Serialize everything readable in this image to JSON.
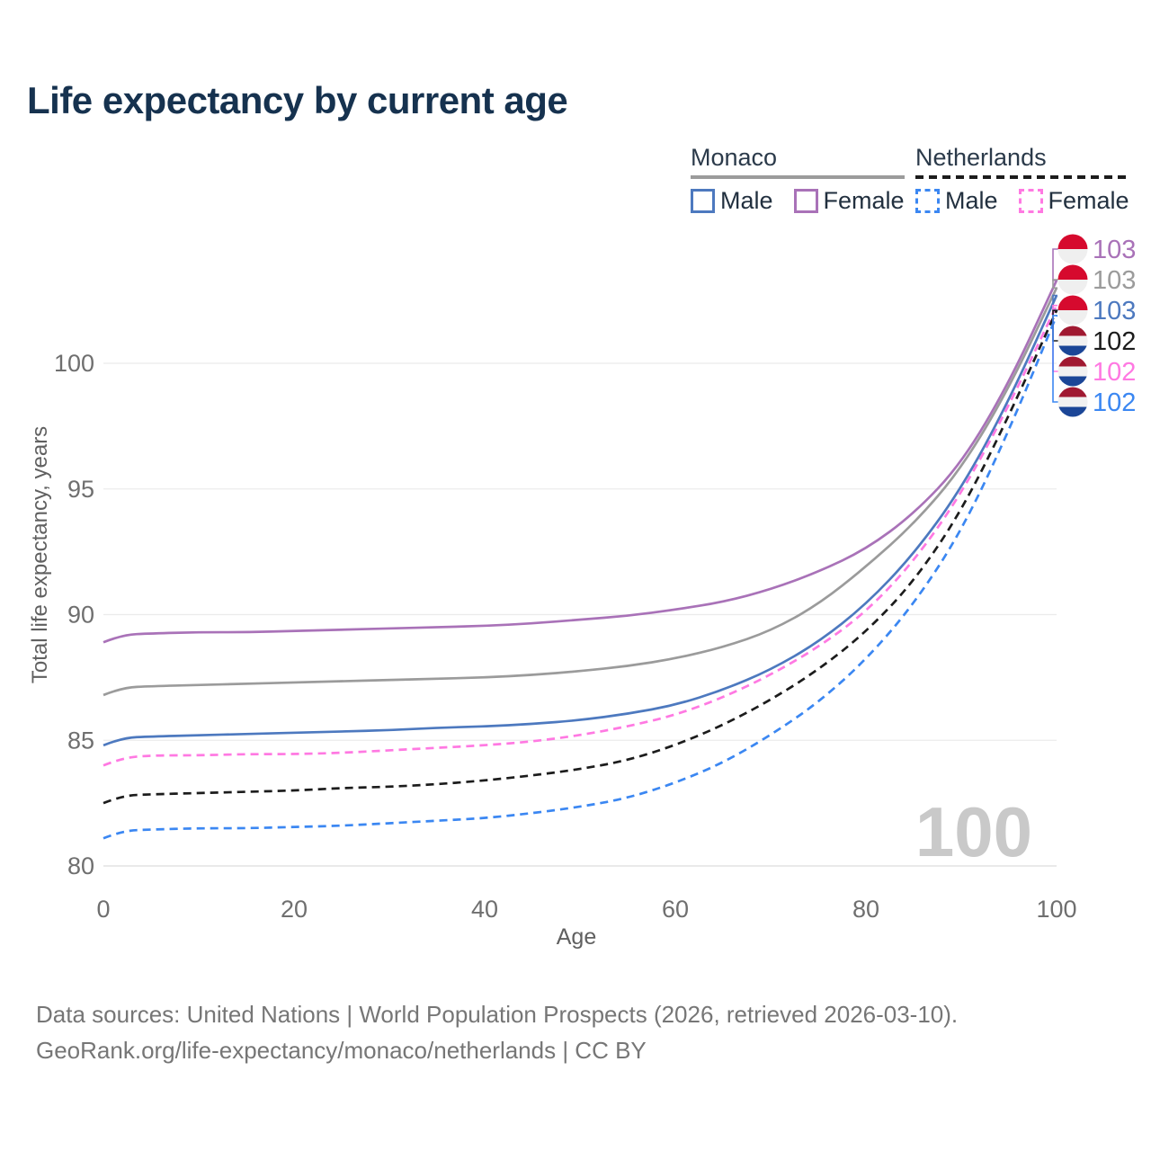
{
  "title": "Life expectancy by current age",
  "legend": {
    "groups": [
      {
        "name": "Monaco",
        "line_style": "solid",
        "underline_color": "#9b9b9b",
        "items": [
          {
            "label": "Male",
            "color": "#4d79bf"
          },
          {
            "label": "Female",
            "color": "#a972b8"
          }
        ]
      },
      {
        "name": "Netherlands",
        "line_style": "dashed",
        "underline_color": "#1c1c1c",
        "items": [
          {
            "label": "Male",
            "color": "#3b87f2"
          },
          {
            "label": "Female",
            "color": "#ff79e2"
          }
        ]
      }
    ]
  },
  "chart_data": {
    "type": "line",
    "xlabel": "Age",
    "ylabel": "Total life expectancy, years",
    "xlim": [
      0,
      100
    ],
    "ylim": [
      79.5,
      103.5
    ],
    "xticks": [
      0,
      20,
      40,
      60,
      80,
      100
    ],
    "yticks": [
      80,
      85,
      90,
      95,
      100
    ],
    "grid": "horizontal",
    "legend_position": "top-right",
    "annotation": "100",
    "x": [
      0,
      2,
      5,
      10,
      15,
      20,
      25,
      30,
      35,
      40,
      45,
      50,
      55,
      60,
      65,
      70,
      75,
      80,
      85,
      90,
      95,
      100
    ],
    "series": [
      {
        "name": "Monaco Female",
        "country": "Monaco",
        "sex": "Female",
        "color": "#a972b8",
        "dashed": false,
        "flag": "monaco",
        "end_label": "103",
        "label_slot": 0,
        "values": [
          88.9,
          89.2,
          89.25,
          89.3,
          89.3,
          89.35,
          89.4,
          89.45,
          89.5,
          89.55,
          89.65,
          89.8,
          89.95,
          90.2,
          90.5,
          91.0,
          91.7,
          92.6,
          94.0,
          96.0,
          99.2,
          103.3
        ]
      },
      {
        "name": "Monaco Total",
        "country": "Monaco",
        "sex": "Total",
        "color": "#9b9b9b",
        "dashed": false,
        "flag": "monaco",
        "end_label": "103",
        "label_slot": 1,
        "values": [
          86.8,
          87.1,
          87.15,
          87.2,
          87.25,
          87.3,
          87.35,
          87.4,
          87.45,
          87.5,
          87.6,
          87.75,
          87.95,
          88.25,
          88.7,
          89.35,
          90.4,
          91.9,
          93.6,
          95.8,
          99.0,
          103.0
        ]
      },
      {
        "name": "Monaco Male",
        "country": "Monaco",
        "sex": "Male",
        "color": "#4d79bf",
        "dashed": false,
        "flag": "monaco",
        "end_label": "103",
        "label_slot": 2,
        "values": [
          84.8,
          85.1,
          85.15,
          85.2,
          85.25,
          85.3,
          85.35,
          85.4,
          85.5,
          85.55,
          85.65,
          85.8,
          86.05,
          86.4,
          87.0,
          87.8,
          88.9,
          90.4,
          92.4,
          95.0,
          98.5,
          102.7
        ]
      },
      {
        "name": "Netherlands Female",
        "country": "Netherlands",
        "sex": "Female",
        "color": "#ff79e2",
        "dashed": true,
        "flag": "netherlands",
        "end_label": "102",
        "label_slot": 4,
        "values": [
          84.0,
          84.3,
          84.4,
          84.4,
          84.45,
          84.45,
          84.5,
          84.6,
          84.7,
          84.8,
          84.95,
          85.2,
          85.55,
          86.0,
          86.7,
          87.6,
          88.7,
          90.1,
          92.1,
          94.8,
          98.3,
          102.3
        ]
      },
      {
        "name": "Netherlands Total",
        "country": "Netherlands",
        "sex": "Total",
        "color": "#1c1c1c",
        "dashed": true,
        "flag": "netherlands",
        "end_label": "102",
        "label_slot": 3,
        "values": [
          82.5,
          82.8,
          82.85,
          82.9,
          82.95,
          83.0,
          83.1,
          83.15,
          83.25,
          83.4,
          83.6,
          83.85,
          84.2,
          84.8,
          85.6,
          86.6,
          87.8,
          89.3,
          91.3,
          94.1,
          97.9,
          102.1
        ]
      },
      {
        "name": "Netherlands Male",
        "country": "Netherlands",
        "sex": "Male",
        "color": "#3b87f2",
        "dashed": true,
        "flag": "netherlands",
        "end_label": "102",
        "label_slot": 5,
        "values": [
          81.1,
          81.4,
          81.45,
          81.5,
          81.5,
          81.55,
          81.6,
          81.7,
          81.8,
          81.9,
          82.1,
          82.35,
          82.7,
          83.3,
          84.1,
          85.2,
          86.5,
          88.2,
          90.4,
          93.3,
          97.3,
          101.9
        ]
      }
    ],
    "flag_colors": {
      "monaco": [
        "#d60a2e",
        "#efefef"
      ],
      "netherlands": [
        "#a01931",
        "#f1f1f1",
        "#1b4697"
      ]
    }
  },
  "footer": {
    "line1": "Data sources: United Nations | World Population Prospects (2026, retrieved 2026-03-10).",
    "line2": "GeoRank.org/life-expectancy/monaco/netherlands | CC BY"
  }
}
